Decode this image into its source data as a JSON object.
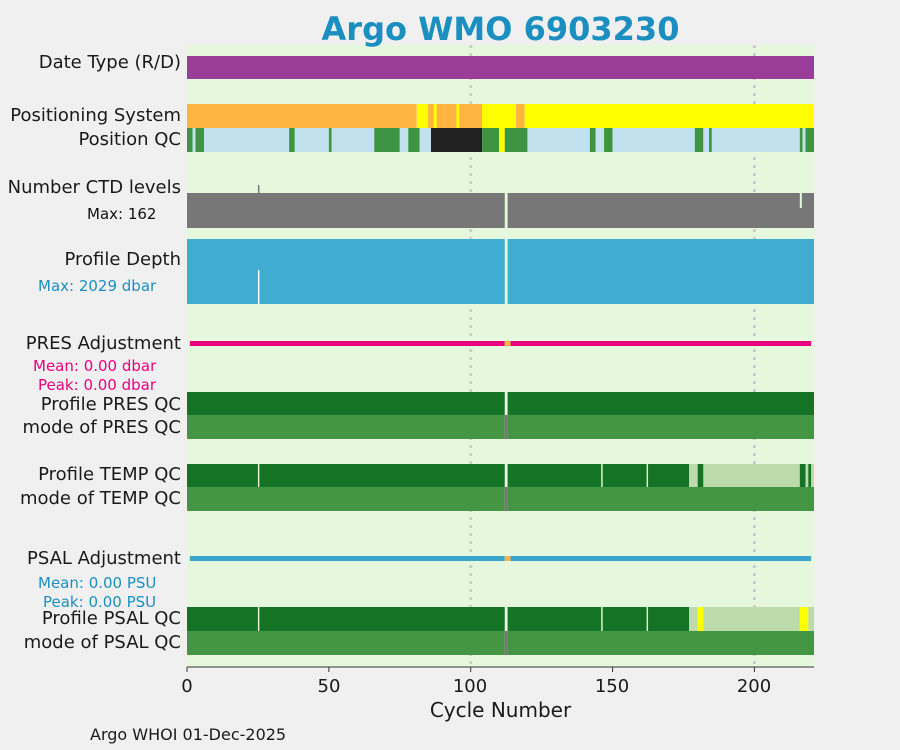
{
  "chart_data": {
    "type": "timeline",
    "title": "Argo WMO 6903230",
    "xlabel": "Cycle Number",
    "xlim": [
      0,
      221
    ],
    "xticks": [
      0,
      50,
      100,
      150,
      200
    ],
    "colors": {
      "background": "#e5f8de",
      "delayed": "#993d99",
      "gps": "#ffb340",
      "iridium": "#ffff00",
      "argos_mixed": "#ff9a30",
      "pos_qc_good": "#c1e1ef",
      "pos_qc_green": "#3e9541",
      "pos_qc_dark": "#222222",
      "ctd": "#777777",
      "depth": "#40acd1",
      "pres_adj": "#e8007e",
      "psal_adj": "#3aa5cd",
      "qc_a": "#157326",
      "qc_mode": "#449645",
      "qc_light": "#bddbaa",
      "qc_yellow": "#ffff00",
      "title": "#1a8fc0",
      "grid": "#cccccc"
    },
    "rows": [
      {
        "label": "Date Type (R/D)",
        "segments": [
          {
            "from": 0,
            "to": 221,
            "color": "delayed"
          }
        ]
      },
      {
        "label": "Positioning System",
        "segments": [
          {
            "from": 0,
            "to": 81,
            "color": "gps"
          },
          {
            "from": 81,
            "to": 85,
            "color": "iridium"
          },
          {
            "from": 85,
            "to": 87,
            "color": "gps"
          },
          {
            "from": 87,
            "to": 88,
            "color": "iridium"
          },
          {
            "from": 88,
            "to": 95,
            "color": "gps"
          },
          {
            "from": 95,
            "to": 96,
            "color": "iridium"
          },
          {
            "from": 96,
            "to": 104,
            "color": "gps"
          },
          {
            "from": 104,
            "to": 116,
            "color": "iridium"
          },
          {
            "from": 116,
            "to": 119,
            "color": "gps"
          },
          {
            "from": 119,
            "to": 221,
            "color": "iridium"
          }
        ]
      },
      {
        "label": "Position QC",
        "segments": [
          {
            "from": 0,
            "to": 2,
            "color": "pos_qc_green"
          },
          {
            "from": 2,
            "to": 3,
            "color": "pos_qc_good"
          },
          {
            "from": 3,
            "to": 6,
            "color": "pos_qc_green"
          },
          {
            "from": 6,
            "to": 36,
            "color": "pos_qc_good"
          },
          {
            "from": 36,
            "to": 38,
            "color": "pos_qc_green"
          },
          {
            "from": 38,
            "to": 50,
            "color": "pos_qc_good"
          },
          {
            "from": 50,
            "to": 51,
            "color": "pos_qc_green"
          },
          {
            "from": 51,
            "to": 66,
            "color": "pos_qc_good"
          },
          {
            "from": 66,
            "to": 75,
            "color": "pos_qc_green"
          },
          {
            "from": 75,
            "to": 78,
            "color": "pos_qc_good"
          },
          {
            "from": 78,
            "to": 82,
            "color": "pos_qc_green"
          },
          {
            "from": 82,
            "to": 86,
            "color": "pos_qc_good"
          },
          {
            "from": 86,
            "to": 104,
            "color": "pos_qc_dark"
          },
          {
            "from": 104,
            "to": 110,
            "color": "pos_qc_green"
          },
          {
            "from": 110,
            "to": 112,
            "color": "qc_yellow"
          },
          {
            "from": 112,
            "to": 120,
            "color": "pos_qc_green"
          },
          {
            "from": 120,
            "to": 142,
            "color": "pos_qc_good"
          },
          {
            "from": 142,
            "to": 144,
            "color": "pos_qc_green"
          },
          {
            "from": 144,
            "to": 147,
            "color": "pos_qc_good"
          },
          {
            "from": 147,
            "to": 150,
            "color": "pos_qc_green"
          },
          {
            "from": 150,
            "to": 179,
            "color": "pos_qc_good"
          },
          {
            "from": 179,
            "to": 182,
            "color": "pos_qc_green"
          },
          {
            "from": 182,
            "to": 184,
            "color": "pos_qc_good"
          },
          {
            "from": 184,
            "to": 185,
            "color": "pos_qc_green"
          },
          {
            "from": 185,
            "to": 216,
            "color": "pos_qc_good"
          },
          {
            "from": 216,
            "to": 217,
            "color": "pos_qc_green"
          },
          {
            "from": 217,
            "to": 218,
            "color": "pos_qc_good"
          },
          {
            "from": 218,
            "to": 221,
            "color": "pos_qc_green"
          }
        ]
      },
      {
        "label": "Number CTD levels",
        "max_label": "Max: 162",
        "max_value": 162,
        "color": "ctd",
        "segments": [
          {
            "from": 0,
            "to": 112,
            "color": "ctd"
          },
          {
            "from": 113,
            "to": 221,
            "color": "ctd"
          }
        ]
      },
      {
        "label": "Profile Depth",
        "max_label": "Max: 2029 dbar",
        "max_value": 2029,
        "color": "depth",
        "segments": [
          {
            "from": 0,
            "to": 112,
            "color": "depth"
          },
          {
            "from": 113,
            "to": 221,
            "color": "depth"
          }
        ]
      },
      {
        "label": "PRES Adjustment",
        "mean_label": "Mean: 0.00 dbar",
        "peak_label": "Peak: 0.00 dbar",
        "mean": 0.0,
        "peak": 0.0,
        "unit": "dbar",
        "color": "pres_adj",
        "segments": [
          {
            "from": 1,
            "to": 112,
            "color": "pres_adj"
          },
          {
            "from": 114,
            "to": 220,
            "color": "pres_adj"
          }
        ]
      },
      {
        "label": "Profile PRES QC",
        "segments": [
          {
            "from": 0,
            "to": 112,
            "color": "qc_a"
          },
          {
            "from": 113,
            "to": 221,
            "color": "qc_a"
          }
        ]
      },
      {
        "label": "mode of PRES QC",
        "segments": [
          {
            "from": 0,
            "to": 112,
            "color": "qc_mode"
          },
          {
            "from": 113,
            "to": 221,
            "color": "qc_mode"
          }
        ]
      },
      {
        "label": "Profile TEMP QC",
        "segments": [
          {
            "from": 0,
            "to": 25,
            "color": "qc_a"
          },
          {
            "from": 25.5,
            "to": 112,
            "color": "qc_a"
          },
          {
            "from": 113,
            "to": 146,
            "color": "qc_a"
          },
          {
            "from": 146.5,
            "to": 162,
            "color": "qc_a"
          },
          {
            "from": 162.5,
            "to": 177,
            "color": "qc_a"
          },
          {
            "from": 177,
            "to": 180,
            "color": "qc_light"
          },
          {
            "from": 180,
            "to": 182,
            "color": "qc_a"
          },
          {
            "from": 182,
            "to": 216,
            "color": "qc_light"
          },
          {
            "from": 216,
            "to": 218,
            "color": "qc_a"
          },
          {
            "from": 218,
            "to": 219,
            "color": "qc_light"
          },
          {
            "from": 219,
            "to": 220,
            "color": "qc_a"
          },
          {
            "from": 220,
            "to": 221,
            "color": "qc_light"
          }
        ]
      },
      {
        "label": "mode of TEMP QC",
        "segments": [
          {
            "from": 0,
            "to": 112,
            "color": "qc_mode"
          },
          {
            "from": 113,
            "to": 221,
            "color": "qc_mode"
          }
        ]
      },
      {
        "label": "PSAL Adjustment",
        "mean_label": "Mean: 0.00 PSU",
        "peak_label": "Peak: 0.00 PSU",
        "mean": 0.0,
        "peak": 0.0,
        "unit": "PSU",
        "color": "psal_adj",
        "segments": [
          {
            "from": 1,
            "to": 112,
            "color": "psal_adj"
          },
          {
            "from": 114,
            "to": 220,
            "color": "psal_adj"
          }
        ]
      },
      {
        "label": "Profile PSAL QC",
        "segments": [
          {
            "from": 0,
            "to": 25,
            "color": "qc_a"
          },
          {
            "from": 25.5,
            "to": 112,
            "color": "qc_a"
          },
          {
            "from": 113,
            "to": 146,
            "color": "qc_a"
          },
          {
            "from": 146.5,
            "to": 162,
            "color": "qc_a"
          },
          {
            "from": 162.5,
            "to": 177,
            "color": "qc_a"
          },
          {
            "from": 177,
            "to": 180,
            "color": "qc_light"
          },
          {
            "from": 180,
            "to": 182,
            "color": "qc_yellow"
          },
          {
            "from": 182,
            "to": 216,
            "color": "qc_light"
          },
          {
            "from": 216,
            "to": 219,
            "color": "qc_yellow"
          },
          {
            "from": 219,
            "to": 221,
            "color": "qc_light"
          }
        ]
      },
      {
        "label": "mode of PSAL QC",
        "segments": [
          {
            "from": 0,
            "to": 112,
            "color": "qc_mode"
          },
          {
            "from": 113,
            "to": 221,
            "color": "qc_mode"
          }
        ]
      }
    ]
  },
  "footer": "Argo WHOI 01-Dec-2025"
}
